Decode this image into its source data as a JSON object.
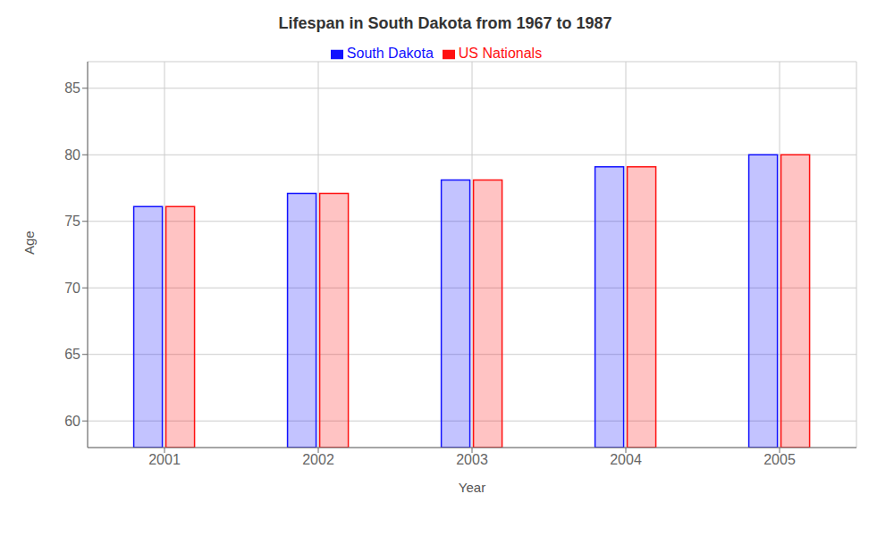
{
  "chart_data": {
    "type": "bar",
    "title": "Lifespan in South Dakota from 1967 to 1987",
    "x_label": "Year",
    "y_label": "Age",
    "categories": [
      "2001",
      "2002",
      "2003",
      "2004",
      "2005"
    ],
    "series": [
      {
        "name": "South Dakota",
        "color": "#1111ff",
        "values": [
          76.1,
          77.1,
          78.1,
          79.1,
          80.0
        ]
      },
      {
        "name": "US Nationals",
        "color": "#ff1111",
        "values": [
          76.1,
          77.1,
          78.1,
          79.1,
          80.0
        ]
      }
    ],
    "ylim": [
      58,
      87
    ],
    "yticks": [
      60,
      65,
      70,
      75,
      80,
      85
    ],
    "grid": true,
    "legend": "top"
  }
}
